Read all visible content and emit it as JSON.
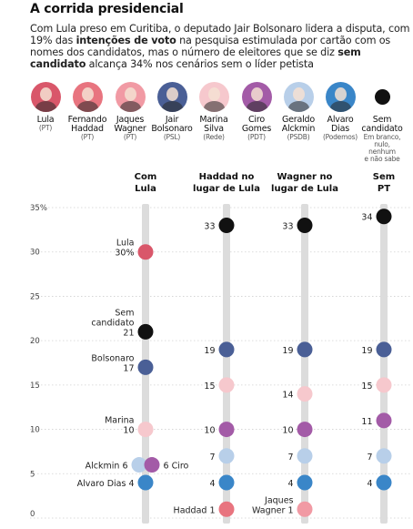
{
  "header": {
    "title": "A corrida presidencial",
    "intro_1": "Com Lula preso em Curitiba, o deputado Jair Bolsonaro lidera a disputa, com 19% das ",
    "intro_bold_1": "intenções de voto",
    "intro_2": " na pesquisa estimulada por cartão com os nomes dos candidatos, mas o número de eleitores que se diz ",
    "intro_bold_2": "sem candidato",
    "intro_3": " alcança 34% nos cenários sem o líder petista"
  },
  "legend": [
    {
      "name": "Lula",
      "party": "(PT)",
      "color": "#d9576a",
      "icon": "lula-portrait"
    },
    {
      "name": "Fernando\nHaddad",
      "party": "(PT)",
      "color": "#e8747f",
      "icon": "haddad-portrait"
    },
    {
      "name": "Jaques\nWagner",
      "party": "(PT)",
      "color": "#f19aa4",
      "icon": "wagner-portrait"
    },
    {
      "name": "Jair\nBolsonaro",
      "party": "(PSL)",
      "color": "#4a5f96",
      "icon": "bolsonaro-portrait"
    },
    {
      "name": "Marina\nSilva",
      "party": "(Rede)",
      "color": "#f6c8cd",
      "icon": "marina-portrait"
    },
    {
      "name": "Ciro\nGomes",
      "party": "(PDT)",
      "color": "#a35ba7",
      "icon": "ciro-portrait"
    },
    {
      "name": "Geraldo\nAlckmin",
      "party": "(PSDB)",
      "color": "#b8cfe9",
      "icon": "alckmin-portrait"
    },
    {
      "name": "Alvaro\nDias",
      "party": "(Podemos)",
      "color": "#3a86c8",
      "icon": "alvaro-portrait"
    },
    {
      "name": "Sem\ncandidato",
      "party": "Em branco,\nnulo, nenhum\ne não sabe",
      "color": "#111111",
      "icon": "black-dot"
    }
  ],
  "chart_data": {
    "type": "scatter",
    "title": "",
    "ylim": [
      0,
      35
    ],
    "yticks": [
      "0",
      "5",
      "10",
      "15",
      "20",
      "25",
      "30",
      "35%"
    ],
    "scenarios": [
      "Com\nLula",
      "Haddad no\nlugar de Lula",
      "Wagner no\nlugar de Lula",
      "Sem\nPT"
    ],
    "points": [
      {
        "scenario": 0,
        "value": 30,
        "color": "#d9576a",
        "label": "Lula\n30%",
        "side": "left"
      },
      {
        "scenario": 0,
        "value": 21,
        "color": "#111111",
        "label": "Sem\ncandidato\n21",
        "side": "left"
      },
      {
        "scenario": 0,
        "value": 17,
        "color": "#4a5f96",
        "label": "Bolsonaro\n17",
        "side": "left"
      },
      {
        "scenario": 0,
        "value": 10,
        "color": "#f6c8cd",
        "label": "Marina\n10",
        "side": "left"
      },
      {
        "scenario": 0,
        "value": 6,
        "color": "#b8cfe9",
        "label": "Alckmin 6",
        "side": "left",
        "dx": -7
      },
      {
        "scenario": 0,
        "value": 6,
        "color": "#a35ba7",
        "label": "6 Ciro",
        "side": "right",
        "dx": 7
      },
      {
        "scenario": 0,
        "value": 4,
        "color": "#3a86c8",
        "label": "Alvaro Dias 4",
        "side": "left"
      },
      {
        "scenario": 1,
        "value": 33,
        "color": "#111111",
        "label": "33",
        "side": "left"
      },
      {
        "scenario": 1,
        "value": 19,
        "color": "#4a5f96",
        "label": "19",
        "side": "left"
      },
      {
        "scenario": 1,
        "value": 15,
        "color": "#f6c8cd",
        "label": "15",
        "side": "left"
      },
      {
        "scenario": 1,
        "value": 10,
        "color": "#a35ba7",
        "label": "10",
        "side": "left"
      },
      {
        "scenario": 1,
        "value": 7,
        "color": "#b8cfe9",
        "label": "7",
        "side": "left"
      },
      {
        "scenario": 1,
        "value": 4,
        "color": "#3a86c8",
        "label": "4",
        "side": "left"
      },
      {
        "scenario": 1,
        "value": 1,
        "color": "#e8747f",
        "label": "Haddad 1",
        "side": "left"
      },
      {
        "scenario": 2,
        "value": 33,
        "color": "#111111",
        "label": "33",
        "side": "left"
      },
      {
        "scenario": 2,
        "value": 19,
        "color": "#4a5f96",
        "label": "19",
        "side": "left"
      },
      {
        "scenario": 2,
        "value": 14,
        "color": "#f6c8cd",
        "label": "14",
        "side": "left"
      },
      {
        "scenario": 2,
        "value": 10,
        "color": "#a35ba7",
        "label": "10",
        "side": "left"
      },
      {
        "scenario": 2,
        "value": 7,
        "color": "#b8cfe9",
        "label": "7",
        "side": "left"
      },
      {
        "scenario": 2,
        "value": 4,
        "color": "#3a86c8",
        "label": "4",
        "side": "left"
      },
      {
        "scenario": 2,
        "value": 1,
        "color": "#f19aa4",
        "label": "Jaques\nWagner 1",
        "side": "left"
      },
      {
        "scenario": 3,
        "value": 34,
        "color": "#111111",
        "label": "34",
        "side": "left"
      },
      {
        "scenario": 3,
        "value": 19,
        "color": "#4a5f96",
        "label": "19",
        "side": "left"
      },
      {
        "scenario": 3,
        "value": 15,
        "color": "#f6c8cd",
        "label": "15",
        "side": "left"
      },
      {
        "scenario": 3,
        "value": 11,
        "color": "#a35ba7",
        "label": "11",
        "side": "left"
      },
      {
        "scenario": 3,
        "value": 7,
        "color": "#b8cfe9",
        "label": "7",
        "side": "left"
      },
      {
        "scenario": 3,
        "value": 4,
        "color": "#3a86c8",
        "label": "4",
        "side": "left"
      }
    ]
  }
}
